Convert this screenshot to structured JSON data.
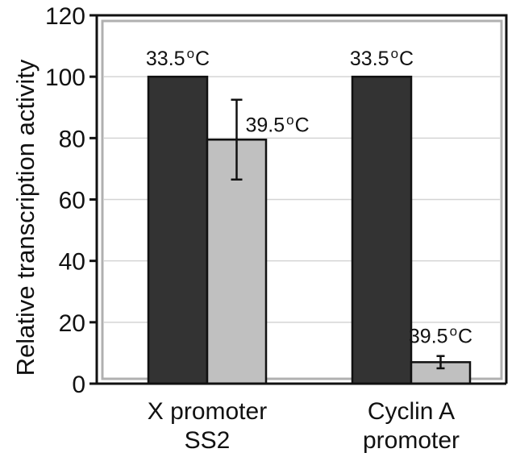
{
  "chart_data": {
    "type": "bar",
    "title": "",
    "xlabel": "",
    "ylabel": "Relative transcription activity",
    "ylim": [
      0,
      120
    ],
    "yticks": [
      0,
      20,
      40,
      60,
      80,
      100,
      120
    ],
    "grid": true,
    "legend": "none",
    "categories": [
      {
        "line1": "X promoter",
        "line2": "SS2"
      },
      {
        "line1": "Cyclin A",
        "line2": "promoter"
      }
    ],
    "series": [
      {
        "color": "#333333",
        "values": [
          100,
          100
        ],
        "errors": [
          null,
          null
        ],
        "labels": [
          {
            "pre": "33.5",
            "sup": "o",
            "post": "C"
          },
          {
            "pre": "33.5",
            "sup": "o",
            "post": "C"
          }
        ]
      },
      {
        "color": "#c0c0c0",
        "values": [
          79.5,
          7
        ],
        "errors": [
          13,
          2
        ],
        "labels": [
          {
            "pre": "39.5",
            "sup": "o",
            "post": "C"
          },
          {
            "pre": "39.5",
            "sup": "o",
            "post": "C"
          }
        ]
      }
    ]
  }
}
